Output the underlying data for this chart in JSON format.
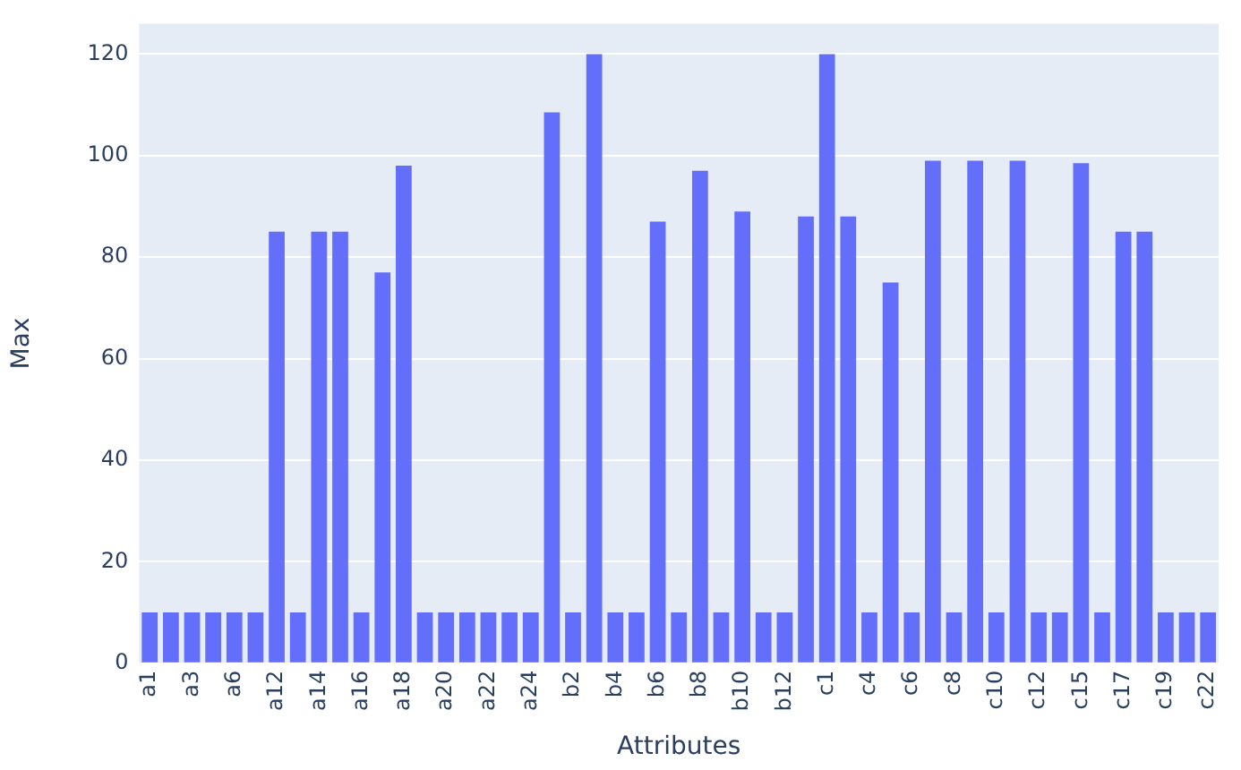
{
  "chart_data": {
    "type": "bar",
    "xlabel": "Attributes",
    "ylabel": "Max",
    "categories": [
      "a1",
      null,
      "a3",
      null,
      "a6",
      null,
      "a12",
      null,
      "a14",
      null,
      "a16",
      null,
      "a18",
      null,
      "a20",
      null,
      "a22",
      null,
      "a24",
      null,
      "b2",
      null,
      "b4",
      null,
      "b6",
      null,
      "b8",
      null,
      "b10",
      null,
      "b12",
      null,
      "c1",
      null,
      "c4",
      null,
      "c6",
      null,
      "c8",
      null,
      "c10",
      null,
      "c12",
      null,
      "c15",
      null,
      "c17",
      null,
      "c19",
      null,
      "c22"
    ],
    "values": [
      10,
      10,
      10,
      10,
      10,
      10,
      85,
      10,
      85,
      85,
      10,
      77,
      98,
      10,
      10,
      10,
      10,
      10,
      10,
      108.5,
      10,
      120,
      10,
      10,
      87,
      10,
      97,
      10,
      89,
      10,
      10,
      88,
      120,
      88,
      10,
      75,
      10,
      99,
      10,
      99,
      10,
      99,
      10,
      10,
      98.5,
      10,
      85,
      85,
      10,
      10,
      10
    ],
    "color": "#636efa",
    "ylim": [
      0,
      126
    ],
    "yticks": [
      0,
      20,
      40,
      60,
      80,
      100,
      120
    ],
    "grid": "y"
  }
}
